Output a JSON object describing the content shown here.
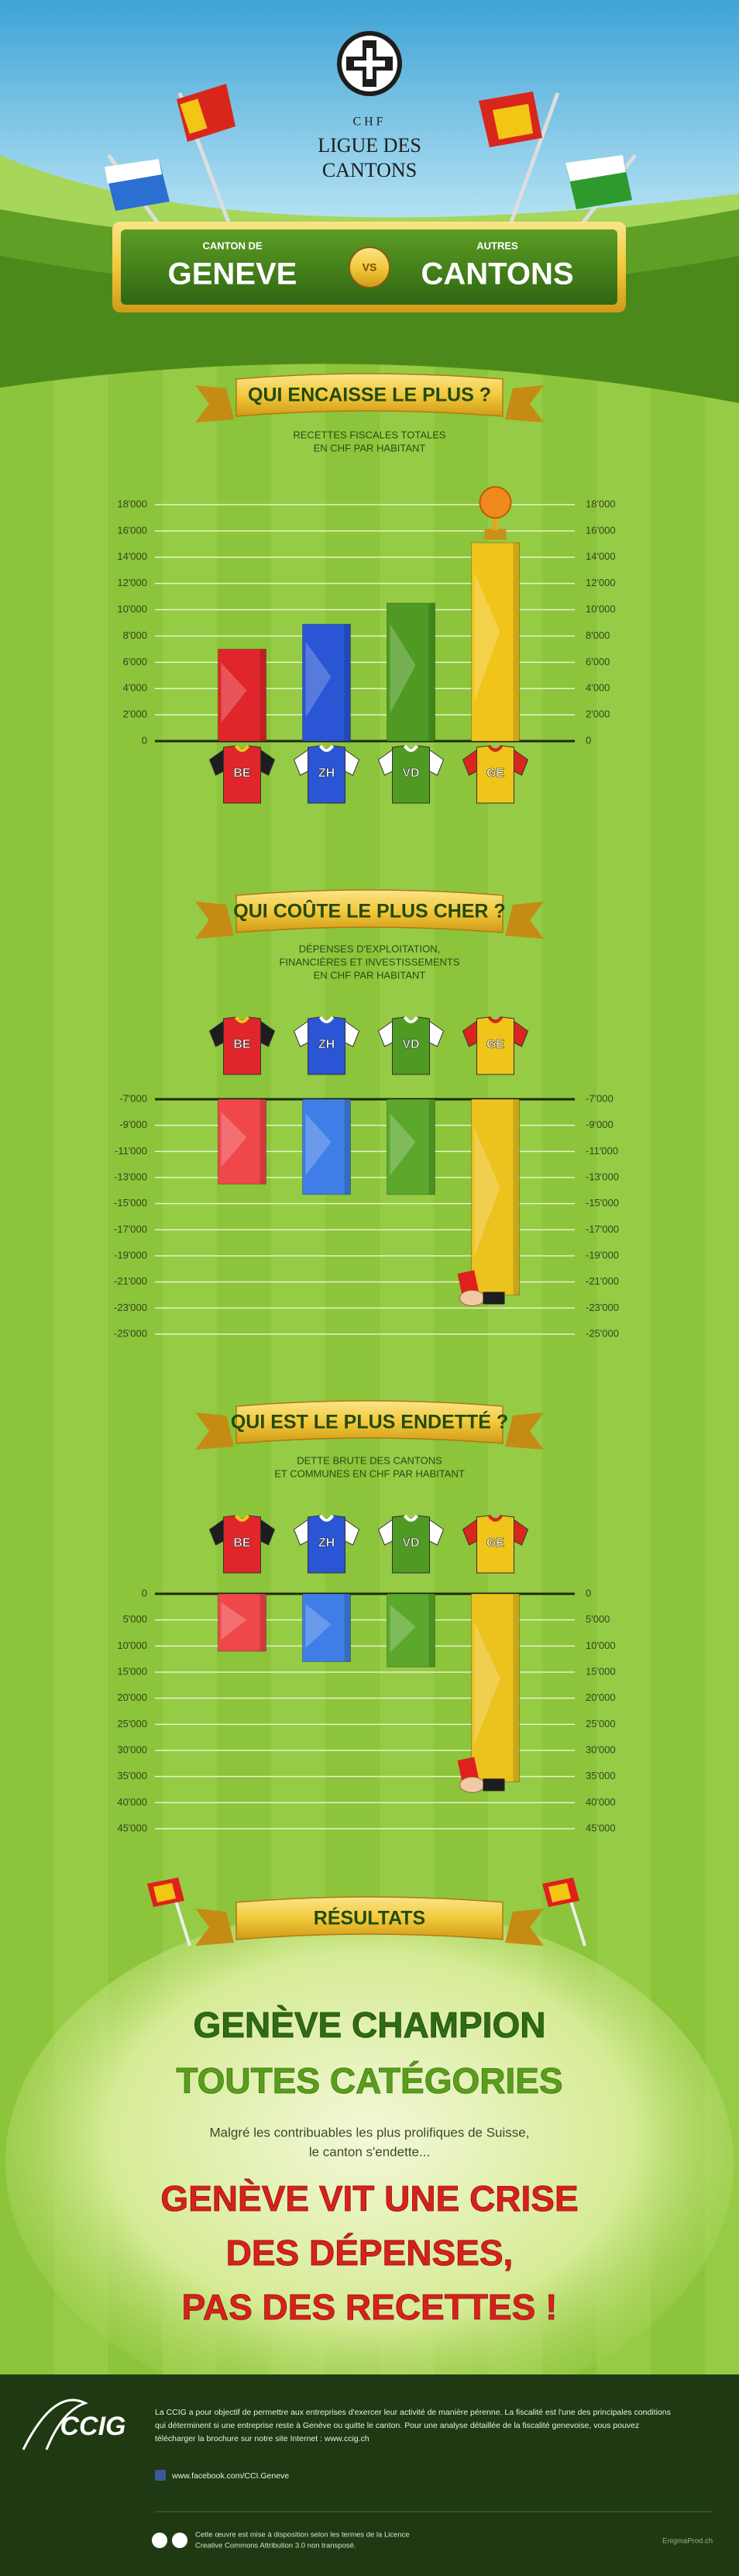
{
  "header": {
    "logo_currency": "CHF",
    "logo_line1": "LIGUE DES",
    "logo_line2": "CANTONS",
    "left_label": "CANTON DE",
    "left_name": "GENEVE",
    "versus": "VS",
    "right_label": "AUTRES",
    "right_name": "CANTONS"
  },
  "chart_data": [
    {
      "type": "bar",
      "title": "QUI ENCAISSE LE PLUS ?",
      "subtitle": [
        "RECETTES FISCALES TOTALES",
        "EN CHF PAR HABITANT"
      ],
      "categories": [
        "BE",
        "ZH",
        "VD",
        "GE"
      ],
      "values": [
        7000,
        8900,
        10500,
        15100
      ],
      "colors": [
        "#e0262a",
        "#2a55d4",
        "#4e9a22",
        "#f0c419"
      ],
      "ylim": [
        0,
        18000
      ],
      "yticks": [
        0,
        {
          "value": 2000,
          "label": "2'000"
        },
        {
          "value": 4000,
          "label": "4'000"
        },
        {
          "value": 6000,
          "label": "6'000"
        },
        {
          "value": 8000,
          "label": "8'000"
        },
        {
          "value": 10000,
          "label": "10'000"
        },
        {
          "value": 12000,
          "label": "12'000"
        },
        {
          "value": 14000,
          "label": "14'000"
        },
        {
          "value": 16000,
          "label": "16'000"
        },
        {
          "value": 18000,
          "label": "18'000"
        }
      ],
      "y_inverted": false,
      "bar_origin": "bottom",
      "grid": true
    },
    {
      "type": "bar",
      "title": "QUI COÛTE LE PLUS CHER ?",
      "subtitle": [
        "DÉPENSES D'EXPLOITATION,",
        "FINANCIÈRES ET INVESTISSEMENTS",
        "EN CHF PAR HABITANT"
      ],
      "categories": [
        "BE",
        "ZH",
        "VD",
        "GE"
      ],
      "values": [
        -13500,
        -14300,
        -14300,
        -22000
      ],
      "colors": [
        "#f0474a",
        "#3f7ee6",
        "#5ca82c",
        "#ecc21e"
      ],
      "ylim": [
        -25000,
        -7000
      ],
      "yticks": [
        {
          "value": -7000,
          "label": "-7'000"
        },
        {
          "value": -9000,
          "label": "-9'000"
        },
        {
          "value": -11000,
          "label": "-11'000"
        },
        {
          "value": -13000,
          "label": "-13'000"
        },
        {
          "value": -15000,
          "label": "-15'000"
        },
        {
          "value": -17000,
          "label": "-17'000"
        },
        {
          "value": -19000,
          "label": "-19'000"
        },
        {
          "value": -21000,
          "label": "-21'000"
        },
        {
          "value": -23000,
          "label": "-23'000"
        },
        {
          "value": -25000,
          "label": "-25'000"
        }
      ],
      "y_inverted": false,
      "bar_origin": "top",
      "grid": true
    },
    {
      "type": "bar",
      "title": "QUI EST LE PLUS ENDETTÉ ?",
      "subtitle": [
        "DETTE BRUTE DES CANTONS",
        "ET COMMUNES EN CHF PAR HABITANT"
      ],
      "categories": [
        "BE",
        "ZH",
        "VD",
        "GE"
      ],
      "values": [
        11000,
        13000,
        14000,
        36000
      ],
      "colors": [
        "#f0474a",
        "#3f7ee6",
        "#5ca82c",
        "#ecc21e"
      ],
      "ylim": [
        0,
        45000
      ],
      "yticks": [
        0,
        {
          "value": 5000,
          "label": "5'000"
        },
        {
          "value": 10000,
          "label": "10'000"
        },
        {
          "value": 15000,
          "label": "15'000"
        },
        {
          "value": 20000,
          "label": "20'000"
        },
        {
          "value": 25000,
          "label": "25'000"
        },
        {
          "value": 30000,
          "label": "30'000"
        },
        {
          "value": 35000,
          "label": "35'000"
        },
        {
          "value": 40000,
          "label": "40'000"
        },
        {
          "value": 45000,
          "label": "45'000"
        }
      ],
      "y_inverted": true,
      "bar_origin": "top",
      "grid": true
    }
  ],
  "results": {
    "title": "RÉSULTATS",
    "headline": [
      "GENÈVE CHAMPION",
      "TOUTES CATÉGORIES"
    ],
    "text": [
      "Malgré les contribuables les plus prolifiques de Suisse,",
      "le canton s'endette..."
    ],
    "conclusion": [
      "GENÈVE VIT UNE CRISE",
      "DES DÉPENSES,",
      "PAS DES RECETTES !"
    ]
  },
  "footer": {
    "logo": "CCIG",
    "about": [
      "La CCIG a pour objectif de permettre aux entreprises d'exercer leur activité de manière pérenne. La fiscalité est l'une des principales conditions",
      "qui déterminent si une entreprise reste à Genève ou quitte le canton. Pour une analyse détaillée de la fiscalité genevoise, vous pouvez",
      "télécharger la brochure sur notre site Internet : www.ccig.ch"
    ],
    "facebook": "www.facebook.com/CCI.Geneve",
    "license": [
      "Cette œuvre est mise à disposition selon les termes de la Licence",
      "Creative Commons Attribution 3.0 non transposé."
    ],
    "credit": "EnigmaProd.ch"
  }
}
